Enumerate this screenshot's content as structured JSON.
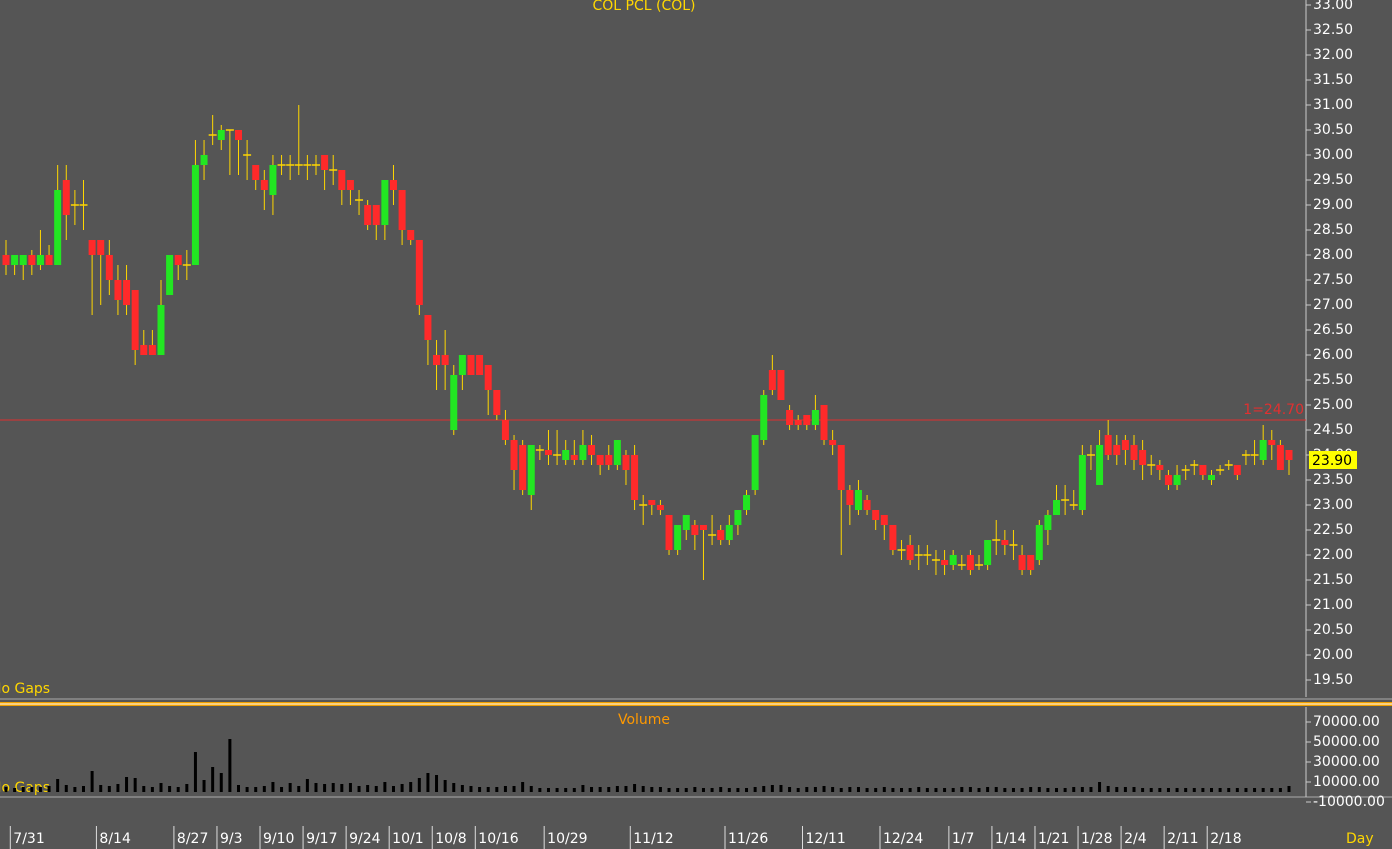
{
  "chart_data": [
    {
      "type": "candlestick",
      "title": "COL PCL (COL)",
      "note": "No Gaps",
      "categories": [
        null,
        "7/31",
        null,
        null,
        null,
        null,
        null,
        null,
        null,
        null,
        null,
        "8/14",
        null,
        null,
        null,
        null,
        null,
        null,
        null,
        null,
        "8/27",
        null,
        null,
        null,
        null,
        "9/3",
        null,
        null,
        null,
        null,
        "9/10",
        null,
        null,
        null,
        null,
        "9/17",
        null,
        null,
        null,
        null,
        "9/24",
        null,
        null,
        null,
        null,
        "10/1",
        null,
        null,
        null,
        null,
        "10/8",
        null,
        null,
        null,
        null,
        "10/16",
        null,
        null,
        null,
        null,
        null,
        null,
        null,
        "10/29",
        null,
        null,
        null,
        null,
        null,
        null,
        null,
        null,
        null,
        "11/12",
        null,
        null,
        null,
        null,
        null,
        null,
        null,
        null,
        null,
        null,
        "11/26",
        null,
        null,
        null,
        null,
        null,
        null,
        null,
        null,
        "12/11",
        null,
        null,
        null,
        null,
        null,
        null,
        null,
        null,
        "12/24",
        null,
        null,
        null,
        null,
        null,
        null,
        null,
        "1/7",
        null,
        null,
        null,
        null,
        "1/14",
        null,
        null,
        null,
        null,
        "1/21",
        null,
        null,
        null,
        null,
        "1/28",
        null,
        null,
        null,
        null,
        "2/4",
        null,
        null,
        null,
        null,
        "2/11",
        null,
        null,
        null,
        null,
        "2/18",
        null,
        null,
        null,
        null,
        null,
        null,
        null,
        null,
        null
      ],
      "x_unit": "Day",
      "open": [
        28.0,
        27.8,
        27.8,
        28.0,
        27.8,
        28.0,
        27.8,
        29.5,
        29.0,
        29.0,
        28.3,
        28.3,
        28.0,
        27.5,
        27.5,
        27.3,
        26.2,
        26.2,
        26.0,
        27.2,
        28.0,
        27.8,
        27.8,
        29.8,
        30.4,
        30.3,
        30.5,
        30.5,
        30.0,
        29.8,
        29.5,
        29.2,
        29.8,
        29.8,
        29.8,
        29.8,
        29.8,
        30.0,
        29.7,
        29.7,
        29.5,
        29.1,
        29.0,
        29.0,
        28.6,
        29.5,
        29.3,
        28.5,
        28.3,
        26.8,
        26.0,
        26.0,
        24.5,
        25.6,
        26.0,
        26.0,
        25.8,
        25.3,
        24.7,
        24.3,
        24.2,
        23.2,
        24.1,
        24.1,
        24.0,
        23.9,
        24.0,
        23.9,
        24.2,
        24.0,
        24.0,
        23.8,
        24.0,
        24.0,
        23.0,
        23.1,
        23.0,
        22.8,
        22.1,
        22.5,
        22.6,
        22.6,
        22.4,
        22.5,
        22.3,
        22.6,
        22.9,
        23.3,
        24.3,
        25.7,
        25.7,
        24.9,
        24.7,
        24.8,
        24.6,
        25.0,
        24.3,
        24.2,
        23.3,
        22.9,
        23.1,
        22.9,
        22.8,
        22.6,
        22.1,
        22.2,
        22.0,
        22.0,
        21.9,
        21.9,
        21.8,
        21.8,
        22.0,
        21.8,
        21.8,
        22.3,
        22.3,
        22.2,
        22.0,
        22.0,
        21.9,
        22.5,
        22.8,
        23.1,
        23.0,
        22.9,
        24.0,
        23.4,
        24.4,
        24.2,
        24.3,
        24.2,
        24.1,
        23.8,
        23.8,
        23.6,
        23.4,
        23.7,
        23.8,
        23.8,
        23.5,
        23.7,
        23.8,
        23.8,
        24.0,
        24.0,
        23.9,
        24.3,
        24.2,
        24.1
      ],
      "high": [
        28.3,
        28.0,
        28.0,
        28.1,
        28.5,
        28.2,
        29.8,
        29.8,
        29.3,
        29.5,
        28.3,
        28.3,
        28.3,
        27.8,
        27.8,
        27.3,
        26.5,
        26.5,
        27.5,
        28.0,
        28.0,
        28.1,
        30.3,
        30.3,
        30.8,
        30.6,
        30.5,
        30.5,
        30.3,
        29.8,
        29.7,
        30.0,
        30.0,
        30.0,
        31.0,
        30.0,
        30.0,
        30.0,
        30.0,
        29.7,
        29.5,
        29.3,
        29.1,
        29.0,
        29.5,
        29.8,
        29.3,
        28.5,
        28.3,
        26.8,
        26.3,
        26.5,
        25.8,
        26.0,
        26.0,
        26.0,
        25.8,
        25.3,
        24.9,
        24.4,
        24.3,
        24.2,
        24.2,
        24.5,
        24.5,
        24.3,
        24.3,
        24.5,
        24.4,
        24.0,
        24.2,
        24.3,
        24.1,
        24.2,
        23.2,
        23.1,
        23.1,
        22.8,
        22.6,
        22.8,
        22.7,
        22.6,
        22.8,
        22.6,
        22.8,
        22.9,
        23.3,
        24.4,
        25.3,
        26.0,
        25.7,
        25.0,
        24.8,
        24.8,
        25.2,
        25.0,
        24.5,
        24.2,
        23.4,
        23.5,
        23.2,
        22.9,
        22.8,
        22.6,
        22.3,
        22.4,
        22.2,
        22.2,
        22.1,
        22.1,
        22.1,
        22.0,
        22.1,
        22.0,
        22.3,
        22.7,
        22.5,
        22.5,
        22.2,
        22.0,
        22.7,
        22.9,
        23.4,
        23.4,
        23.3,
        24.2,
        24.2,
        24.5,
        24.7,
        24.4,
        24.4,
        24.4,
        24.3,
        24.0,
        23.9,
        23.7,
        23.8,
        23.8,
        23.9,
        23.8,
        23.7,
        23.8,
        23.9,
        23.8,
        24.1,
        24.3,
        24.6,
        24.5,
        24.3,
        24.1
      ],
      "low": [
        27.6,
        27.6,
        27.5,
        27.6,
        27.7,
        27.8,
        27.8,
        28.3,
        28.6,
        28.5,
        26.8,
        27.0,
        27.2,
        26.8,
        26.8,
        25.8,
        26.0,
        26.0,
        26.0,
        27.2,
        27.5,
        27.5,
        27.8,
        29.5,
        30.2,
        30.1,
        29.6,
        29.6,
        29.5,
        29.3,
        28.9,
        28.8,
        29.6,
        29.5,
        29.6,
        29.5,
        29.6,
        29.3,
        29.4,
        29.0,
        29.0,
        28.8,
        28.5,
        28.3,
        28.3,
        29.0,
        28.2,
        28.2,
        26.8,
        25.8,
        25.3,
        25.3,
        24.4,
        25.3,
        25.6,
        25.6,
        24.8,
        24.7,
        24.2,
        23.3,
        23.2,
        22.9,
        23.9,
        23.8,
        23.8,
        23.8,
        23.8,
        23.8,
        23.8,
        23.6,
        23.7,
        23.7,
        23.4,
        22.9,
        22.6,
        22.8,
        22.8,
        22.0,
        22.0,
        22.3,
        22.1,
        21.5,
        22.2,
        22.2,
        22.2,
        22.4,
        22.8,
        23.2,
        24.2,
        25.2,
        25.1,
        24.5,
        24.5,
        24.5,
        24.5,
        24.2,
        24.0,
        22.0,
        22.6,
        22.8,
        22.8,
        22.5,
        22.3,
        22.0,
        21.9,
        21.8,
        21.7,
        21.8,
        21.6,
        21.6,
        21.7,
        21.7,
        21.6,
        21.7,
        21.7,
        22.0,
        22.0,
        21.9,
        21.6,
        21.6,
        21.8,
        22.2,
        22.8,
        22.8,
        22.9,
        22.8,
        23.7,
        23.4,
        23.9,
        23.8,
        23.8,
        23.7,
        23.5,
        23.6,
        23.5,
        23.3,
        23.3,
        23.5,
        23.6,
        23.5,
        23.4,
        23.6,
        23.7,
        23.5,
        23.8,
        23.8,
        23.8,
        23.9,
        23.7,
        23.6
      ],
      "close": [
        27.8,
        28.0,
        28.0,
        27.8,
        28.0,
        27.8,
        29.3,
        28.8,
        29.0,
        29.0,
        28.0,
        28.0,
        27.5,
        27.1,
        27.0,
        26.1,
        26.0,
        26.0,
        27.0,
        28.0,
        27.8,
        27.8,
        29.8,
        30.0,
        30.4,
        30.5,
        30.5,
        30.3,
        30.0,
        29.5,
        29.3,
        29.8,
        29.8,
        29.8,
        29.8,
        29.8,
        29.8,
        29.7,
        29.7,
        29.3,
        29.3,
        29.1,
        28.6,
        28.6,
        29.5,
        29.3,
        28.5,
        28.3,
        27.0,
        26.3,
        25.8,
        25.8,
        25.6,
        26.0,
        25.6,
        25.6,
        25.3,
        24.8,
        24.3,
        23.7,
        23.3,
        24.2,
        24.1,
        24.0,
        24.0,
        24.1,
        23.9,
        24.2,
        24.0,
        23.8,
        23.8,
        24.3,
        23.7,
        23.1,
        23.0,
        23.0,
        22.9,
        22.1,
        22.6,
        22.8,
        22.4,
        22.5,
        22.4,
        22.3,
        22.6,
        22.9,
        23.2,
        24.4,
        25.2,
        25.3,
        25.1,
        24.6,
        24.6,
        24.6,
        24.9,
        24.3,
        24.2,
        23.3,
        23.0,
        23.3,
        22.9,
        22.7,
        22.6,
        22.1,
        22.1,
        21.9,
        22.0,
        22.0,
        21.9,
        21.8,
        22.0,
        21.8,
        21.7,
        21.8,
        22.3,
        22.3,
        22.2,
        22.2,
        21.7,
        21.7,
        22.6,
        22.8,
        23.1,
        23.1,
        23.0,
        24.0,
        24.0,
        24.2,
        24.0,
        24.0,
        24.1,
        23.9,
        23.8,
        23.8,
        23.7,
        23.4,
        23.6,
        23.7,
        23.8,
        23.6,
        23.6,
        23.7,
        23.8,
        23.6,
        24.0,
        24.0,
        24.3,
        24.2,
        23.7,
        23.9
      ],
      "up_color": "#22e622",
      "down_color": "#ff2a2a",
      "doji_color": "#ffd700",
      "ylim": [
        19.16,
        33.1
      ],
      "yticks": [
        {
          "value": 33.0,
          "label": "33.00"
        },
        {
          "value": 32.5,
          "label": "32.50"
        },
        {
          "value": 32.0,
          "label": "32.00"
        },
        {
          "value": 31.5,
          "label": "31.50"
        },
        {
          "value": 31.0,
          "label": "31.00"
        },
        {
          "value": 30.5,
          "label": "30.50"
        },
        {
          "value": 30.0,
          "label": "30.00"
        },
        {
          "value": 29.5,
          "label": "29.50"
        },
        {
          "value": 29.0,
          "label": "29.00"
        },
        {
          "value": 28.5,
          "label": "28.50"
        },
        {
          "value": 28.0,
          "label": "28.00"
        },
        {
          "value": 27.5,
          "label": "27.50"
        },
        {
          "value": 27.0,
          "label": "27.00"
        },
        {
          "value": 26.5,
          "label": "26.50"
        },
        {
          "value": 26.0,
          "label": "26.00"
        },
        {
          "value": 25.5,
          "label": "25.50"
        },
        {
          "value": 25.0,
          "label": "25.00"
        },
        {
          "value": 24.5,
          "label": "24.50"
        },
        {
          "value": 24.0,
          "label": "24.00"
        },
        {
          "value": 23.5,
          "label": "23.50"
        },
        {
          "value": 23.0,
          "label": "23.00"
        },
        {
          "value": 22.5,
          "label": "22.50"
        },
        {
          "value": 22.0,
          "label": "22.00"
        },
        {
          "value": 21.5,
          "label": "21.50"
        },
        {
          "value": 21.0,
          "label": "21.00"
        },
        {
          "value": 20.5,
          "label": "20.50"
        },
        {
          "value": 20.0,
          "label": "20.00"
        },
        {
          "value": 19.5,
          "label": "19.50"
        }
      ],
      "hline": {
        "value": 24.7,
        "label": "1=24.70",
        "color": "#e03030"
      },
      "last_price": {
        "value": 23.9,
        "label": "23.90"
      }
    },
    {
      "type": "bar",
      "title": "Volume",
      "note": "No Gaps",
      "color": "#000000",
      "values": [
        5000,
        4000,
        5000,
        5000,
        5000,
        6000,
        13000,
        7000,
        5000,
        6000,
        21000,
        7000,
        6000,
        8000,
        15000,
        14000,
        6000,
        5000,
        9000,
        6000,
        5000,
        8000,
        40000,
        12000,
        25000,
        19000,
        53000,
        7000,
        5000,
        5000,
        6000,
        10000,
        5000,
        9000,
        6000,
        13000,
        9000,
        8000,
        9000,
        8000,
        9000,
        6000,
        7000,
        6000,
        10000,
        6000,
        8000,
        10000,
        14000,
        19000,
        17000,
        12000,
        9000,
        7000,
        6000,
        5000,
        5000,
        5000,
        6000,
        6000,
        10000,
        6000,
        4000,
        4000,
        4000,
        4000,
        4000,
        7000,
        5000,
        5000,
        5000,
        6000,
        6000,
        8000,
        6000,
        5000,
        5000,
        4000,
        4000,
        4000,
        5000,
        4000,
        4000,
        5000,
        4000,
        4000,
        4000,
        5000,
        6000,
        7000,
        7000,
        5000,
        4000,
        5000,
        5000,
        6000,
        5000,
        4000,
        5000,
        5000,
        4000,
        4000,
        5000,
        4000,
        4000,
        4000,
        5000,
        4000,
        4000,
        4000,
        4000,
        5000,
        5000,
        4000,
        5000,
        5000,
        4000,
        4000,
        4000,
        5000,
        5000,
        4000,
        4000,
        4000,
        5000,
        5000,
        5000,
        10000,
        6000,
        5000,
        5000,
        5000,
        4000,
        4000,
        4000,
        4000,
        4000,
        4000,
        4000,
        4000,
        4000,
        4000,
        4000,
        4000,
        4000,
        4000,
        4000,
        4000,
        4000,
        6000
      ],
      "ylim": [
        -5000,
        85000
      ],
      "yticks": [
        {
          "value": 70000,
          "label": "70000.00"
        },
        {
          "value": 50000,
          "label": "50000.00"
        },
        {
          "value": 30000,
          "label": "30000.00"
        },
        {
          "value": 10000,
          "label": "10000.00"
        },
        {
          "value": -10000,
          "label": "-10000.00"
        }
      ]
    }
  ]
}
